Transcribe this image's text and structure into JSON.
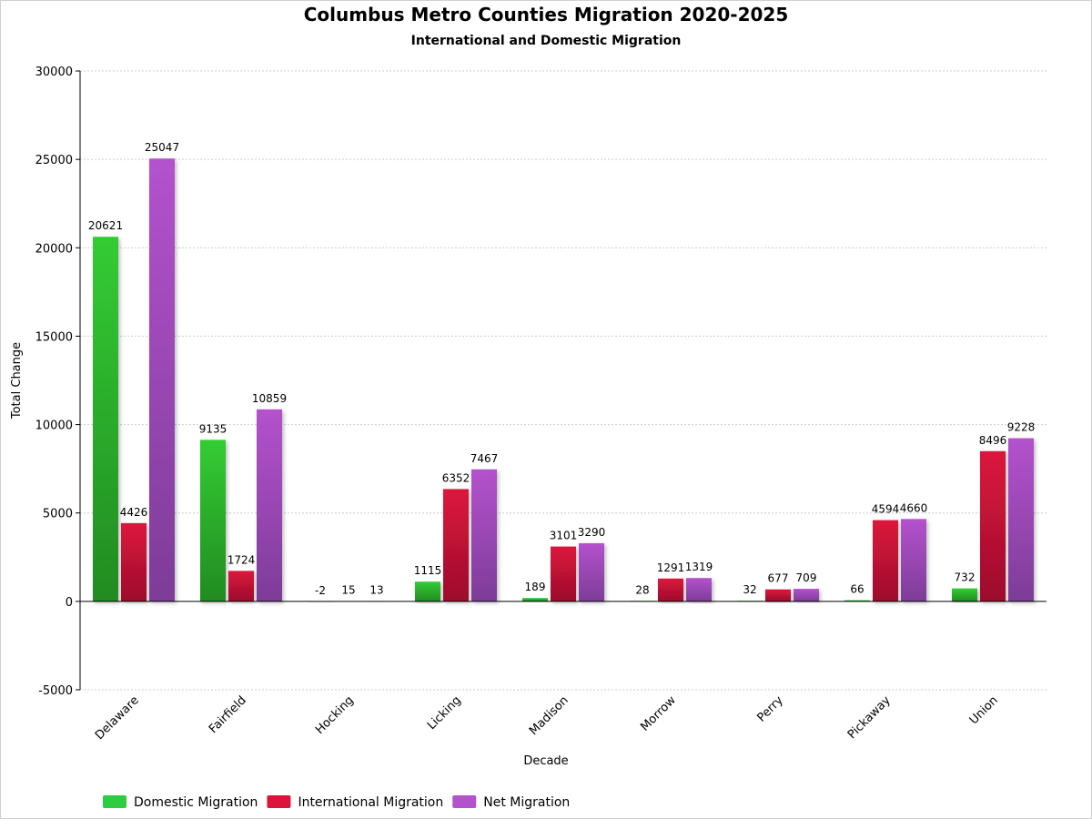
{
  "chart_data": {
    "type": "bar",
    "title": "Columbus Metro Counties Migration 2020-2025",
    "subtitle": "International and Domestic Migration",
    "xlabel": "Decade",
    "ylabel": "Total Change",
    "ylim": [
      -5000,
      30000
    ],
    "yticks": [
      30000,
      25000,
      20000,
      15000,
      10000,
      5000,
      0,
      -5000
    ],
    "grid": true,
    "legend_position": "bottom-left",
    "categories": [
      "Delaware",
      "Fairfield",
      "Hocking",
      "Licking",
      "Madison",
      "Morrow",
      "Perry",
      "Pickaway",
      "Union"
    ],
    "series": [
      {
        "name": "Domestic Migration",
        "color": "#2ecc40",
        "values": [
          20621,
          9135,
          -2,
          1115,
          189,
          28,
          32,
          66,
          732
        ]
      },
      {
        "name": "International Migration",
        "color": "#dc143c",
        "values": [
          4426,
          1724,
          15,
          6352,
          3101,
          1291,
          677,
          4594,
          8496
        ]
      },
      {
        "name": "Net Migration",
        "color": "#b452cd",
        "values": [
          25047,
          10859,
          13,
          7467,
          3290,
          1319,
          709,
          4660,
          9228
        ]
      }
    ]
  }
}
